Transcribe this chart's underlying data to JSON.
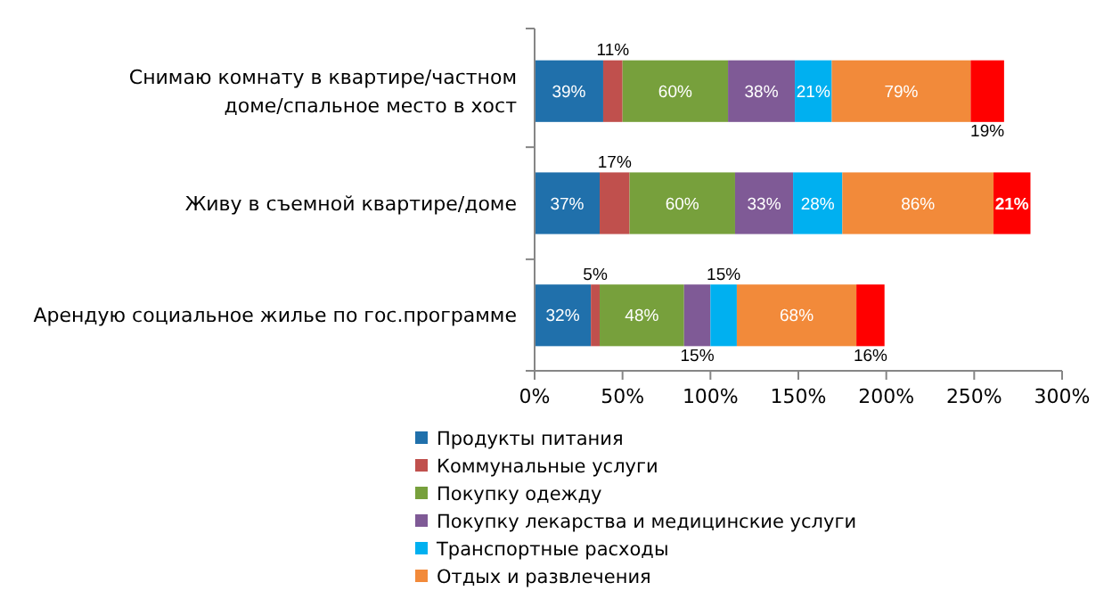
{
  "chart_data": {
    "type": "bar",
    "orientation": "horizontal",
    "stacked": true,
    "legend": "bottom",
    "grid": false,
    "categories": [
      "Снимаю комнату в квартире/частном доме/спальное место в хост",
      "Живу в съемной квартире/доме",
      "Арендую социальное жилье по гос.программе"
    ],
    "xlim": [
      0,
      300
    ],
    "xticks": [
      {
        "value": 0,
        "label": "0%"
      },
      {
        "value": 50,
        "label": "50%"
      },
      {
        "value": 100,
        "label": "100%"
      },
      {
        "value": 150,
        "label": "150%"
      },
      {
        "value": 200,
        "label": "200%"
      },
      {
        "value": 250,
        "label": "250%"
      },
      {
        "value": 300,
        "label": "300%"
      }
    ],
    "series": [
      {
        "name": "Продукты питания",
        "color": "#2070ab",
        "values": [
          39,
          37,
          32
        ],
        "value_labels": [
          "39%",
          "37%",
          "32%"
        ]
      },
      {
        "name": "Коммунальные услуги",
        "color": "#c0504d",
        "values": [
          11,
          17,
          5
        ],
        "value_labels": [
          "11%",
          "17%",
          "5%"
        ]
      },
      {
        "name": "Покупку одежду",
        "color": "#77a03c",
        "values": [
          60,
          60,
          48
        ],
        "value_labels": [
          "60%",
          "60%",
          "48%"
        ]
      },
      {
        "name": "Покупку лекарства и медицинские услуги",
        "color": "#7f5a96",
        "values": [
          38,
          33,
          15
        ],
        "value_labels": [
          "38%",
          "33%",
          "15%"
        ]
      },
      {
        "name": "Транспортные расходы",
        "color": "#00b0f0",
        "values": [
          21,
          28,
          15
        ],
        "value_labels": [
          "21%",
          "28%",
          "15%"
        ]
      },
      {
        "name": "Отдых и развлечения",
        "color": "#f28a3a",
        "values": [
          79,
          86,
          68
        ],
        "value_labels": [
          "79%",
          "86%",
          "68%"
        ]
      },
      {
        "color": "#ff0000",
        "values": [
          19,
          21,
          16
        ],
        "value_labels": [
          "19%",
          "21%",
          "16%"
        ]
      }
    ]
  }
}
